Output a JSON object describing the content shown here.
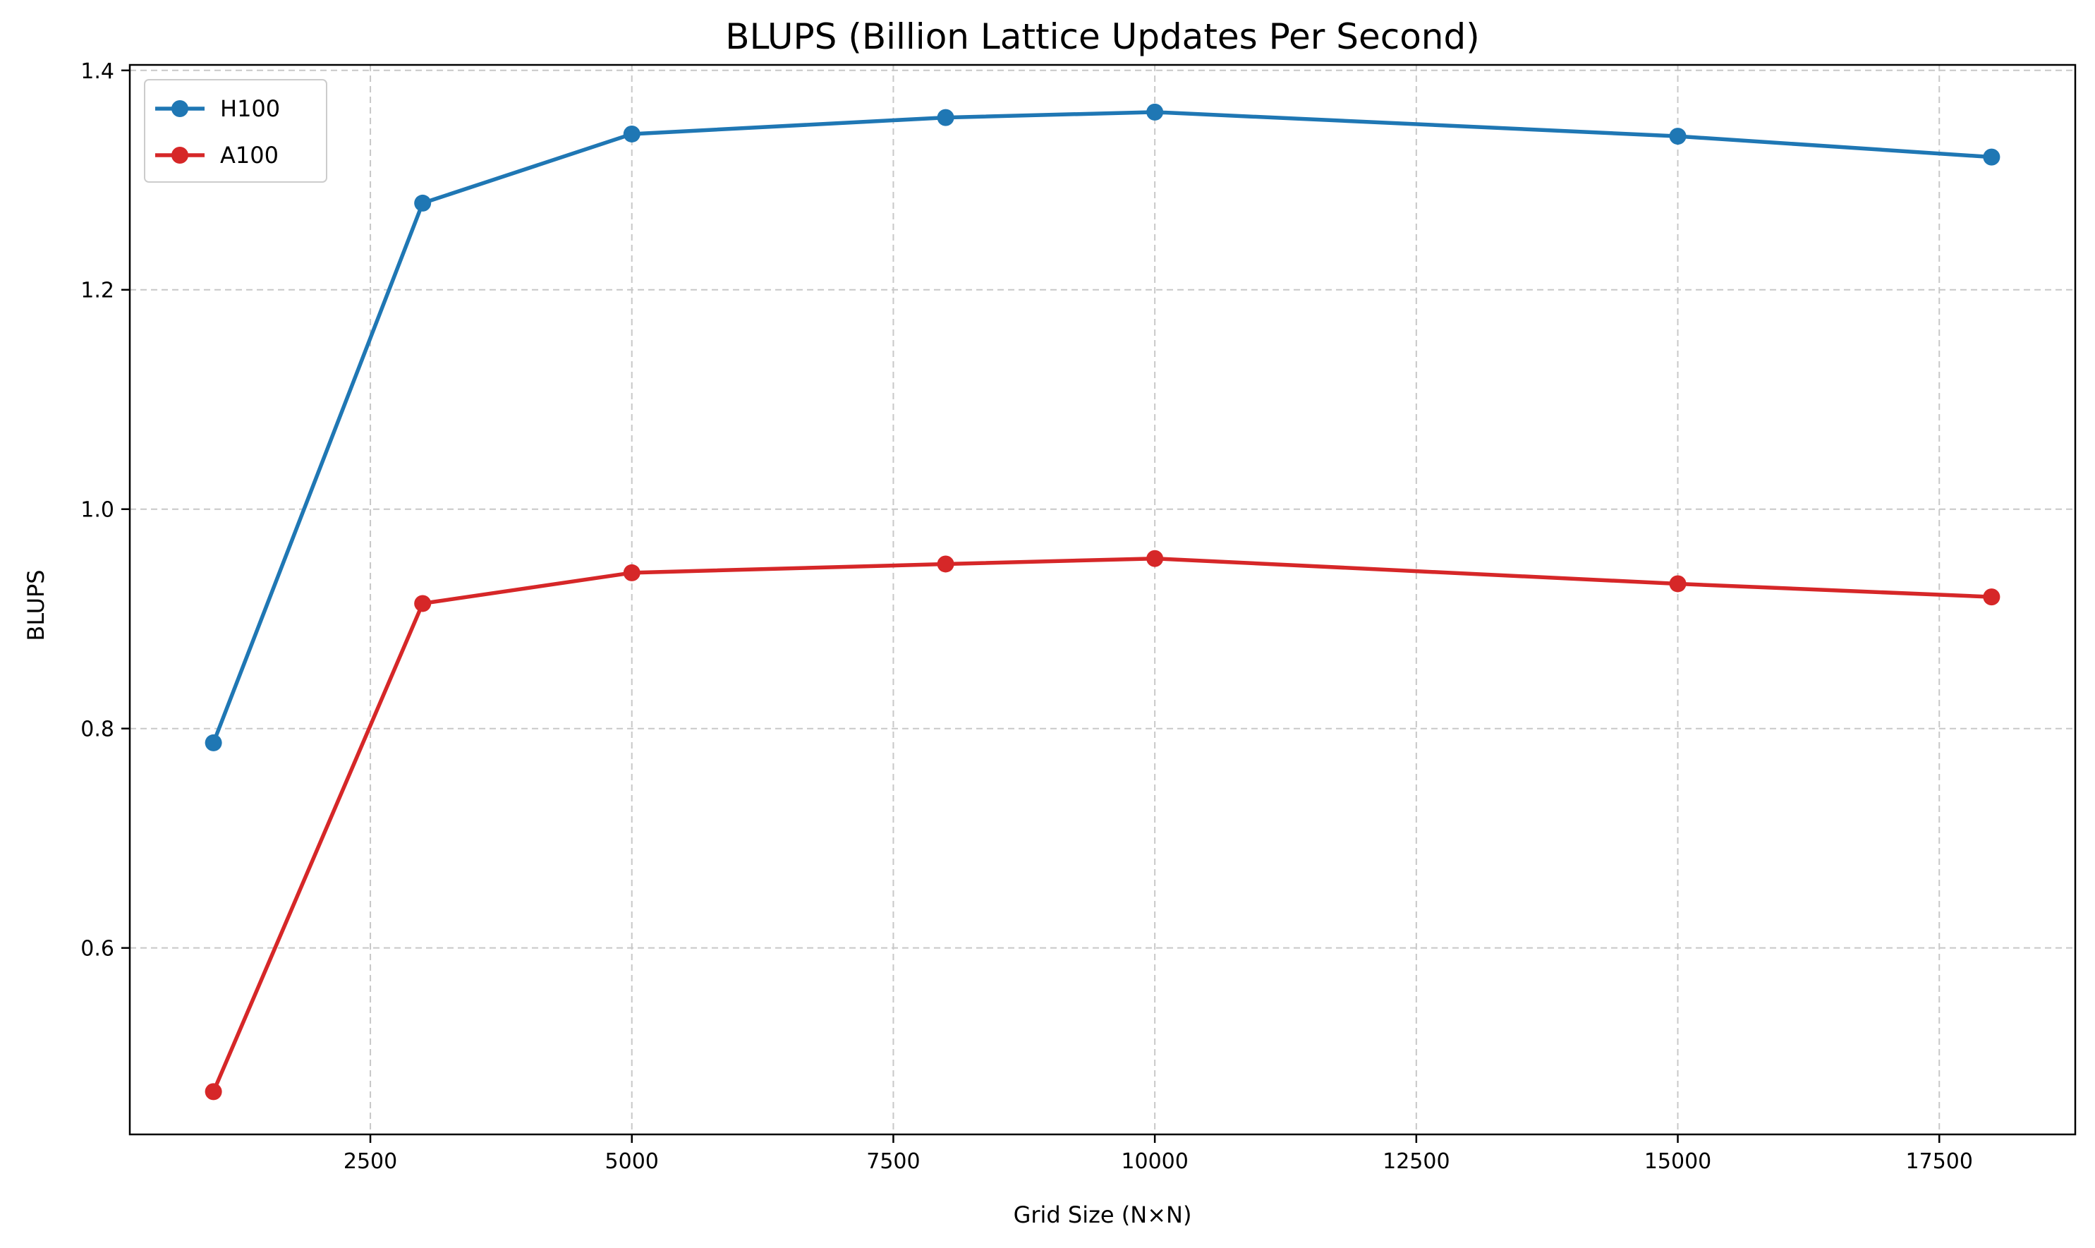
{
  "chart_data": {
    "type": "line",
    "title": "BLUPS (Billion Lattice Updates Per Second)",
    "xlabel": "Grid Size (N×N)",
    "ylabel": "BLUPS",
    "xlim": [
      200,
      18800
    ],
    "ylim": [
      0.43,
      1.405
    ],
    "x_ticks": [
      2500,
      5000,
      7500,
      10000,
      12500,
      15000,
      17500
    ],
    "x_tick_labels": [
      "2500",
      "5000",
      "7500",
      "10000",
      "12500",
      "15000",
      "17500"
    ],
    "y_ticks": [
      0.6,
      0.8,
      1.0,
      1.2,
      1.4
    ],
    "y_tick_labels": [
      "0.6",
      "0.8",
      "1.0",
      "1.2",
      "1.4"
    ],
    "grid": true,
    "legend_position": "top-left",
    "x": [
      1000,
      3000,
      5000,
      8000,
      10000,
      15000,
      18000
    ],
    "series": [
      {
        "name": "H100",
        "color": "#1f77b4",
        "values": [
          0.787,
          1.279,
          1.342,
          1.357,
          1.362,
          1.34,
          1.321
        ]
      },
      {
        "name": "A100",
        "color": "#d62728",
        "values": [
          0.469,
          0.914,
          0.942,
          0.95,
          0.955,
          0.932,
          0.92
        ]
      }
    ]
  }
}
